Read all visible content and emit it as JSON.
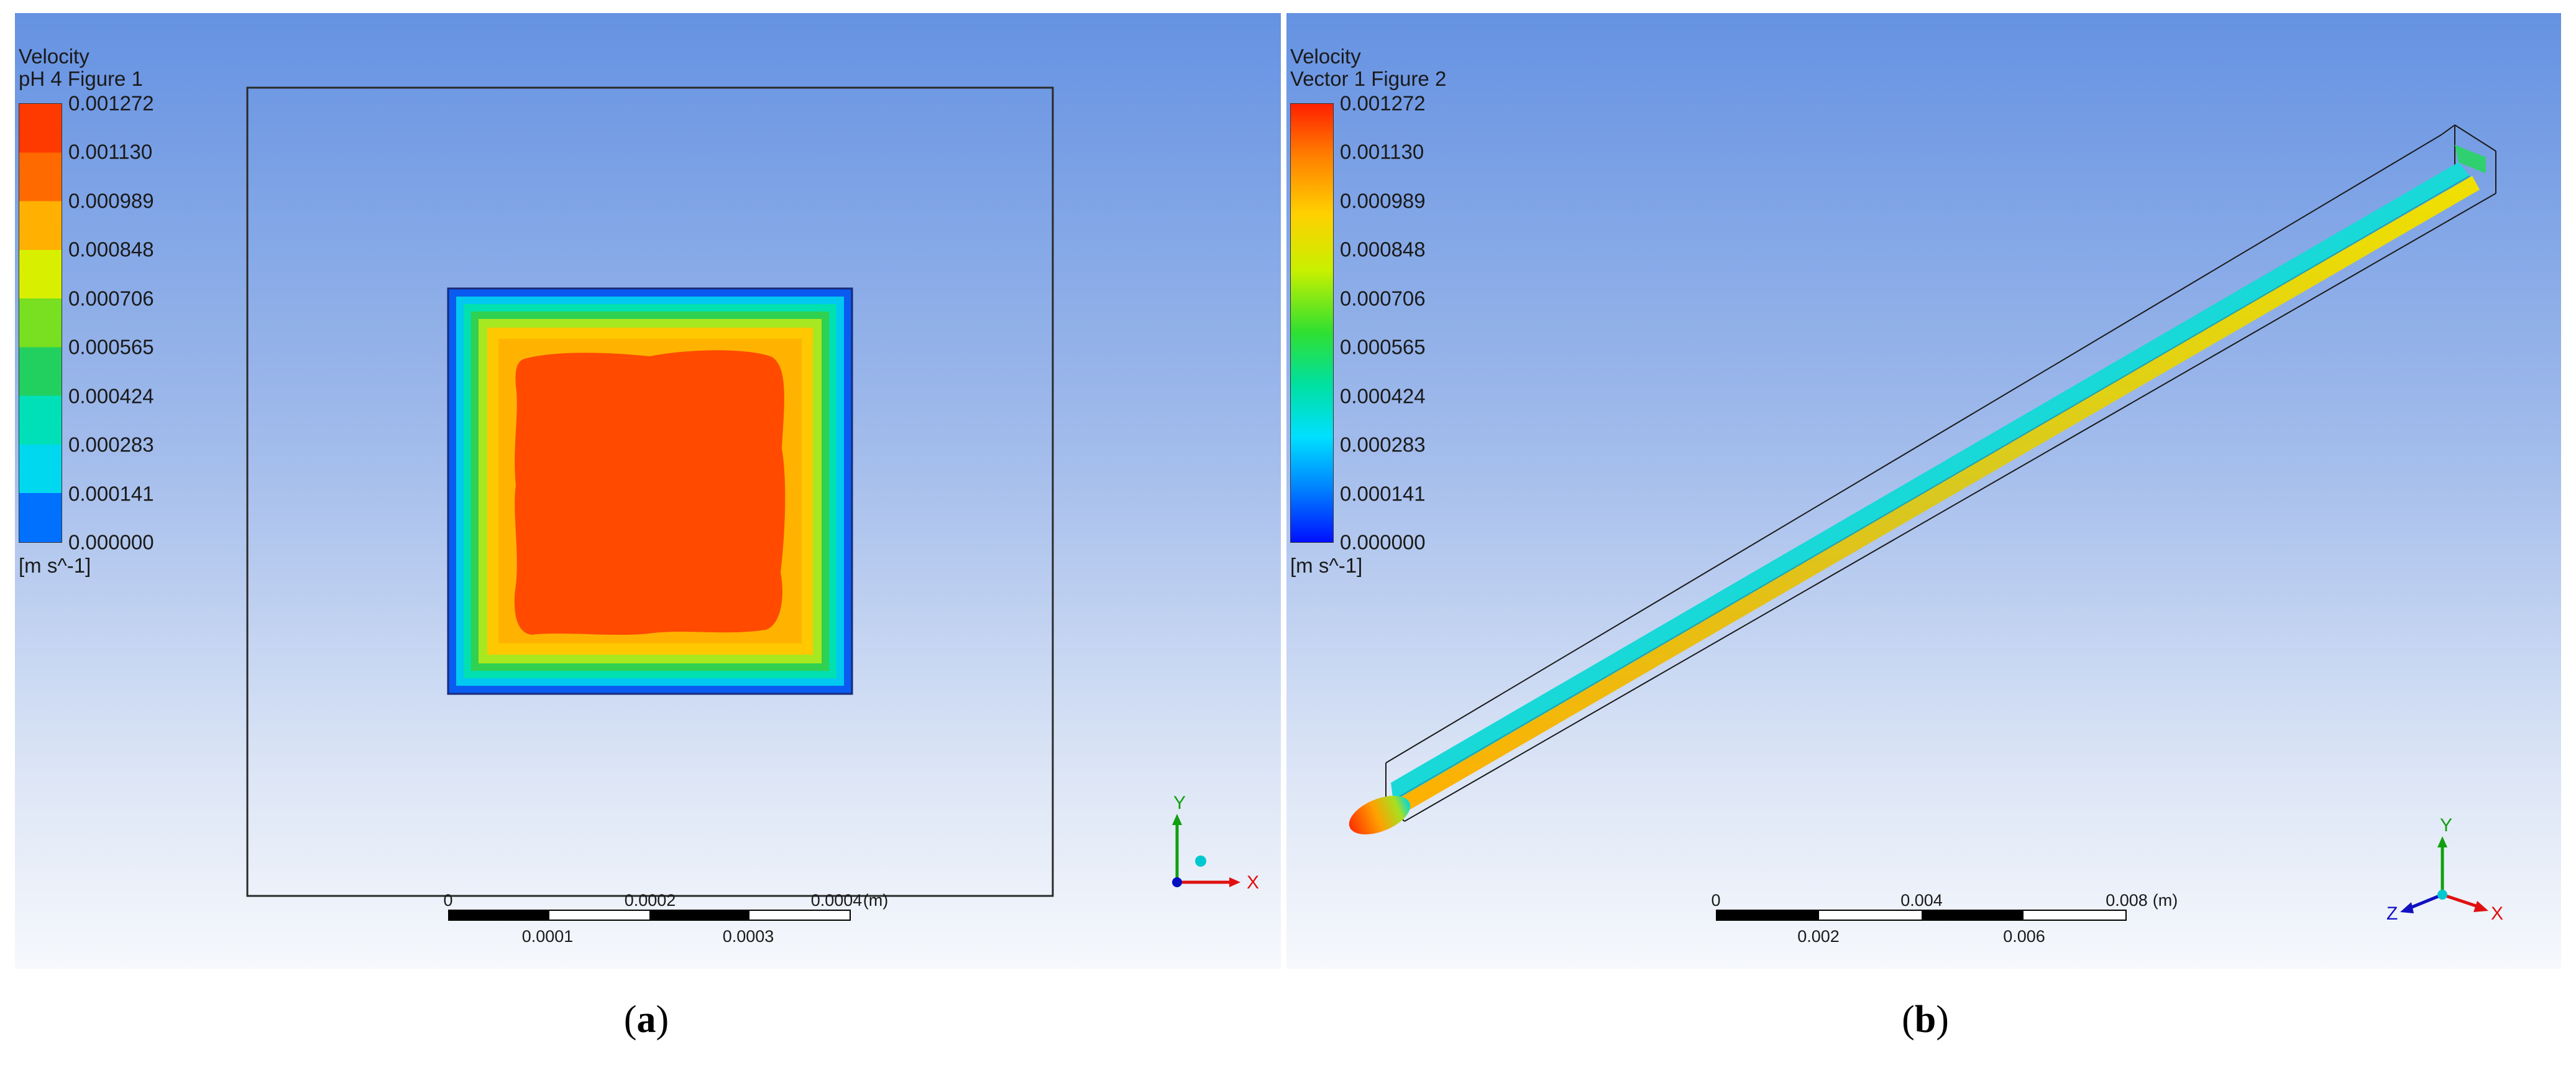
{
  "panel_a": {
    "legend_title": "Velocity",
    "legend_subtitle": "pH 4 Figure 1",
    "ticks": [
      "0.001272",
      "0.001130",
      "0.000989",
      "0.000848",
      "0.000706",
      "0.000565",
      "0.000424",
      "0.000283",
      "0.000141",
      "0.000000"
    ],
    "unit": "[m s^-1]",
    "scale_top": [
      "0",
      "0.0002",
      "0.0004",
      "(m)"
    ],
    "scale_bottom": [
      "0.0001",
      "0.0003"
    ],
    "axis": {
      "y": "Y",
      "x": "X"
    },
    "caption_letter": "a"
  },
  "panel_b": {
    "legend_title": "Velocity",
    "legend_subtitle": "Vector 1 Figure 2",
    "ticks": [
      "0.001272",
      "0.001130",
      "0.000989",
      "0.000848",
      "0.000706",
      "0.000565",
      "0.000424",
      "0.000283",
      "0.000141",
      "0.000000"
    ],
    "unit": "[m s^-1]",
    "scale_top": [
      "0",
      "0.004",
      "0.008",
      "(m)"
    ],
    "scale_bottom": [
      "0.002",
      "0.006"
    ],
    "axis": {
      "y": "Y",
      "x": "X",
      "z": "Z"
    },
    "caption_letter": "b"
  },
  "colors": {
    "background_top": "#6592e2",
    "background_bottom": "#f6f8fc",
    "max_velocity": "#ff4a00",
    "min_velocity": "#0070ff"
  }
}
